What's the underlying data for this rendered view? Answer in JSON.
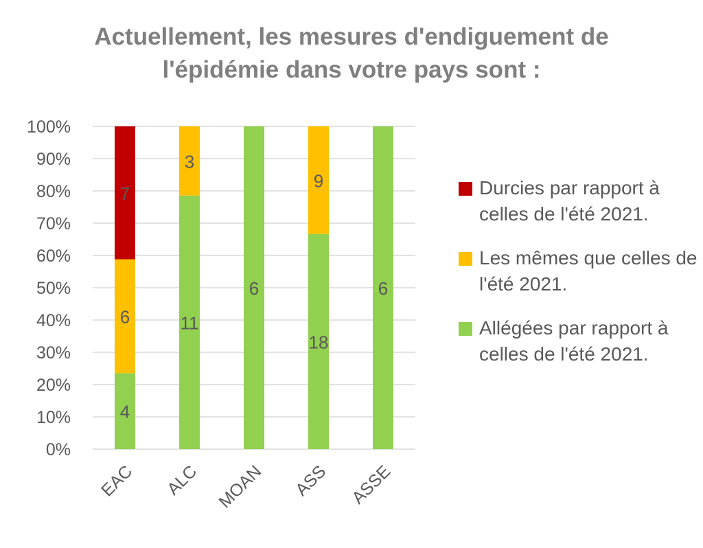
{
  "title_lines": [
    "Actuellement, les mesures d'endiguement de",
    "l'épidémie dans votre pays sont :"
  ],
  "chart_data": {
    "type": "bar",
    "stacked": "percent",
    "title": "Actuellement, les mesures d'endiguement de l'épidémie dans votre pays sont :",
    "categories": [
      "EAC",
      "ALC",
      "MOAN",
      "ASS",
      "ASSE"
    ],
    "series": [
      {
        "name": "Allégées par rapport à celles de l'été 2021.",
        "color": "#92d050",
        "values": [
          4,
          11,
          6,
          18,
          6
        ]
      },
      {
        "name": "Les mêmes que celles de l'été 2021.",
        "color": "#ffc000",
        "values": [
          6,
          3,
          0,
          9,
          0
        ]
      },
      {
        "name": "Durcies par rapport à celles de l'été 2021.",
        "color": "#c00000",
        "values": [
          7,
          0,
          0,
          0,
          0
        ]
      }
    ],
    "y_ticks": [
      "0%",
      "10%",
      "20%",
      "30%",
      "40%",
      "50%",
      "60%",
      "70%",
      "80%",
      "90%",
      "100%"
    ],
    "ylim": [
      0,
      100
    ],
    "grid": true,
    "legend_position": "right",
    "legend_entries": [
      {
        "label": "Durcies par rapport à celles de l'été 2021.",
        "color": "#c00000"
      },
      {
        "label": "Les mêmes que celles de l'été 2021.",
        "color": "#ffc000"
      },
      {
        "label": "Allégées par rapport à celles de l'été 2021.",
        "color": "#92d050"
      }
    ],
    "data_label_color": "#595959",
    "gridline_color": "#d9d9d9"
  }
}
